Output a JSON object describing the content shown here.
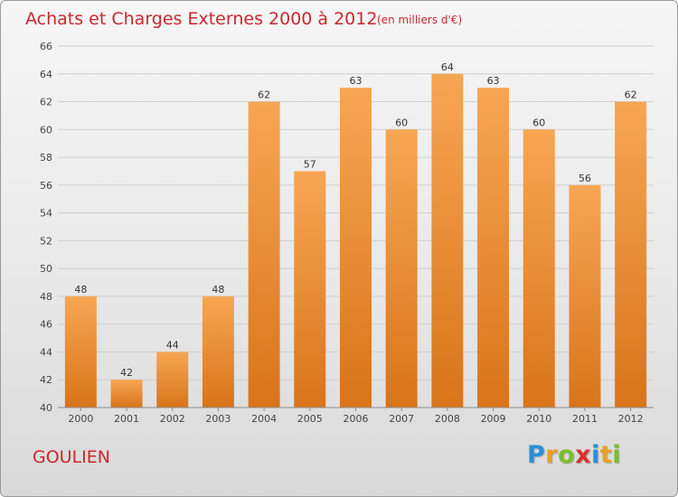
{
  "header": {
    "title": "Achats et Charges Externes 2000 à 2012",
    "unit": "(en milliers d'€)"
  },
  "footer": {
    "commune": "GOULIEN",
    "logo_text": "Proxiti",
    "logo_letters": [
      {
        "ch": "P",
        "color": "#2a8fd6"
      },
      {
        "ch": "r",
        "color": "#e8a026"
      },
      {
        "ch": "o",
        "color": "#7bbf2a"
      },
      {
        "ch": "x",
        "color": "#d9322b"
      },
      {
        "ch": "i",
        "color": "#2a8fd6"
      },
      {
        "ch": "t",
        "color": "#e8a026"
      },
      {
        "ch": "i",
        "color": "#7bbf2a"
      }
    ]
  },
  "chart_data": {
    "type": "bar",
    "title": "Achats et Charges Externes 2000 à 2012",
    "subtitle": "(en milliers d'€)",
    "xlabel": "",
    "ylabel": "",
    "categories": [
      "2000",
      "2001",
      "2002",
      "2003",
      "2004",
      "2005",
      "2006",
      "2007",
      "2008",
      "2009",
      "2010",
      "2011",
      "2012"
    ],
    "values": [
      48,
      42,
      44,
      48,
      62,
      57,
      63,
      60,
      64,
      63,
      60,
      56,
      62
    ],
    "ylim": [
      40,
      66
    ],
    "yticks": [
      40,
      42,
      44,
      46,
      48,
      50,
      52,
      54,
      56,
      58,
      60,
      62,
      64,
      66
    ],
    "grid": true,
    "legend": "none",
    "colors": {
      "bar_top": "#f7a653",
      "bar_bottom": "#d9741a",
      "grid": "#cfcfcf",
      "title": "#c8282e"
    }
  }
}
